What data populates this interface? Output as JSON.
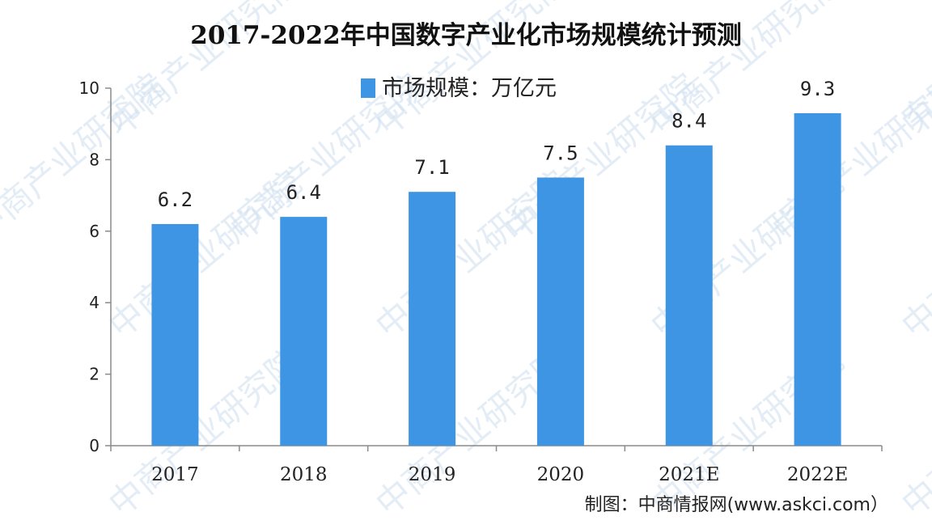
{
  "chart_data": {
    "type": "bar",
    "title": "2017-2022年中国数字产业化市场规模统计预测",
    "categories": [
      "2017",
      "2018",
      "2019",
      "2020",
      "2021E",
      "2022E"
    ],
    "series": [
      {
        "name": "市场规模：万亿元",
        "values": [
          6.2,
          6.4,
          7.1,
          7.5,
          8.4,
          9.3
        ]
      }
    ],
    "data_labels": [
      "6.2",
      "6.4",
      "7.1",
      "7.5",
      "8.4",
      "9.3"
    ],
    "y_ticks": [
      "0",
      "2",
      "4",
      "6",
      "8",
      "10"
    ],
    "ylim": [
      0,
      10
    ],
    "legend_position": "top-center",
    "grid": false,
    "bar_color": "#3d95e3"
  },
  "source": "制图：中商情报网(www.askci.com）",
  "watermark": {
    "text": "中商产业研究院",
    "color": "#cfe0f0"
  }
}
